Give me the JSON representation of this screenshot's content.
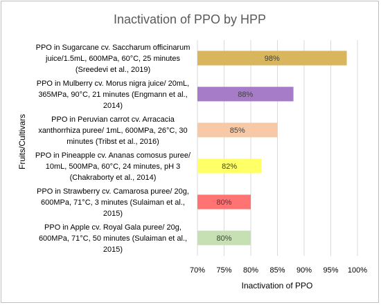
{
  "chart_data": {
    "type": "bar",
    "orientation": "horizontal",
    "title": "Inactivation of PPO by HPP",
    "xlabel": "Inactivation of PPO",
    "ylabel": "Fruits/Cultivars",
    "xlim": [
      70,
      100
    ],
    "x_ticks": [
      "70%",
      "75%",
      "80%",
      "85%",
      "90%",
      "95%",
      "100%"
    ],
    "grid": "vertical",
    "legend": "none",
    "categories": [
      [
        "PPO in Sugarcane cv. Saccharum officinarum",
        "juice/1.5mL, 600MPa, 60°C, 25 minutes",
        "(Sreedevi et al., 2019)"
      ],
      [
        "PPO in Mulberry cv. Morus nigra juice/ 20mL,",
        "365MPa, 90°C, 21 minutes (Engmann et al.,",
        "2014)"
      ],
      [
        "PPO in Peruvian carrot cv. Arracacia",
        "xanthorrhiza puree/ 1mL, 600MPa, 26°C, 30",
        "minutes (Tribst et al., 2016)"
      ],
      [
        "PPO in Pineapple cv. Ananas comosus puree/",
        "10mL, 500MPa, 60°C, 24 minutes, pH 3",
        "(Chakraborty et al., 2014)"
      ],
      [
        "PPO in Strawberry cv. Camarosa puree/ 20g,",
        "600MPa, 71°C, 3 minutes (Sulaiman et al.,",
        "2015)"
      ],
      [
        "PPO in Apple cv. Royal Gala puree/ 20g,",
        "600MPa, 71°C, 50 minutes (Sulaiman et al.,",
        "2015)"
      ]
    ],
    "values": [
      98,
      88,
      85,
      82,
      80,
      80
    ],
    "data_labels": [
      "98%",
      "88%",
      "85%",
      "82%",
      "80%",
      "80%"
    ],
    "colors": [
      "#d9b65e",
      "#a67cc9",
      "#f8c9a6",
      "#ffff66",
      "#ff7373",
      "#c6e0b4"
    ]
  }
}
